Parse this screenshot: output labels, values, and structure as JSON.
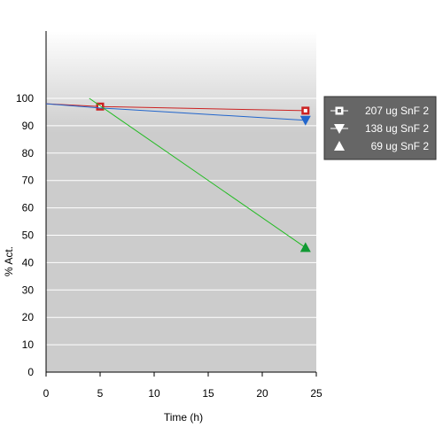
{
  "colors": {
    "background_top": "#ffffff",
    "background_bottom": "#cccccc",
    "gridline": "#ffffff",
    "axis": "#000000",
    "legend_bg": "#666666",
    "legend_border": "#333333",
    "legend_text": "#ffffff"
  },
  "chart_data": {
    "type": "line",
    "xlabel": "Time (h)",
    "ylabel": "% Act.",
    "xlim": [
      0,
      25
    ],
    "ylim": [
      0,
      100
    ],
    "x_ticks": [
      "0",
      "5",
      "10",
      "15",
      "20",
      "25"
    ],
    "y_ticks": [
      "0",
      "10",
      "20",
      "30",
      "40",
      "50",
      "60",
      "70",
      "80",
      "90",
      "100"
    ],
    "grid": true,
    "legend_position": "right",
    "series": [
      {
        "name": "207 ug SnF 2",
        "color": "#cc2222",
        "line_color": "#cc2222",
        "marker": "square",
        "x": [
          0,
          5,
          24
        ],
        "y": [
          98,
          97,
          95.5
        ],
        "marker_indices": [
          1,
          2
        ]
      },
      {
        "name": "138 ug SnF 2",
        "color": "#2266cc",
        "line_color": "#2266cc",
        "marker": "triangle-down",
        "x": [
          0,
          5,
          24
        ],
        "y": [
          98,
          96.5,
          92
        ],
        "marker_indices": [
          2
        ]
      },
      {
        "name": "69 ug SnF 2",
        "color": "#119933",
        "line_color": "#22bb22",
        "marker": "triangle-up",
        "x": [
          4,
          24
        ],
        "y": [
          100,
          45.5
        ],
        "marker_indices": [
          1
        ]
      }
    ]
  }
}
